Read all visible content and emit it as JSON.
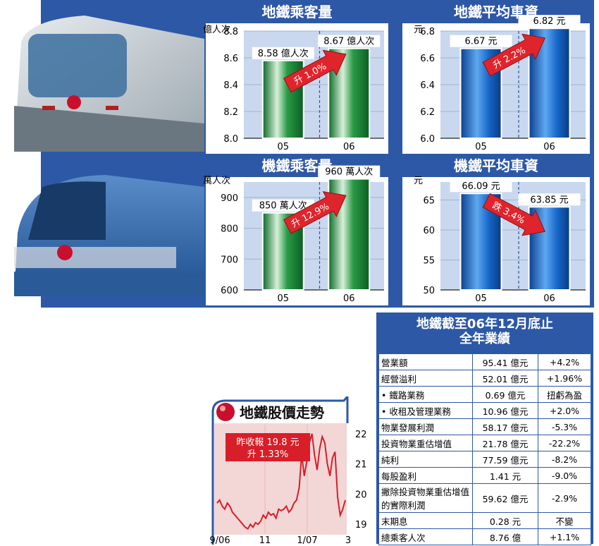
{
  "charts": [
    {
      "title": "地鐵乘客量",
      "unit": "億人次",
      "categories": [
        "05",
        "06"
      ],
      "ticks": [
        "8.0",
        "8.2",
        "8.4",
        "8.6",
        "8.8"
      ],
      "ylim": [
        8.0,
        8.8
      ],
      "values": [
        8.58,
        8.67
      ],
      "value_labels": [
        "8.58 億人次",
        "8.67 億人次"
      ],
      "change": "升 1.0%",
      "bar_color": "green"
    },
    {
      "title": "地鐵平均車資",
      "unit": "元",
      "categories": [
        "05",
        "06"
      ],
      "ticks": [
        "6.0",
        "6.2",
        "6.4",
        "6.6",
        "6.8"
      ],
      "ylim": [
        6.0,
        6.8
      ],
      "values": [
        6.67,
        6.82
      ],
      "value_labels": [
        "6.67 元",
        "6.82 元"
      ],
      "change": "升 2.2%",
      "bar_color": "blue"
    },
    {
      "title": "機鐵乘客量",
      "unit": "萬人次",
      "categories": [
        "05",
        "06"
      ],
      "ticks": [
        "600",
        "700",
        "800",
        "900"
      ],
      "ylim": [
        600,
        950
      ],
      "values": [
        850,
        960
      ],
      "value_labels": [
        "850 萬人次",
        "960 萬人次"
      ],
      "change": "升 12.9%",
      "bar_color": "green"
    },
    {
      "title": "機鐵平均車資",
      "unit": "元",
      "categories": [
        "05",
        "06"
      ],
      "ticks": [
        "50",
        "55",
        "60",
        "65"
      ],
      "ylim": [
        50,
        68
      ],
      "values": [
        66.09,
        63.85
      ],
      "value_labels": [
        "66.09 元",
        "63.85 元"
      ],
      "change": "跌 3.4%",
      "bar_color": "blue"
    }
  ],
  "chart_data": [
    {
      "type": "bar",
      "title": "地鐵乘客量",
      "ylabel": "億人次",
      "categories": [
        "05",
        "06"
      ],
      "values": [
        8.58,
        8.67
      ],
      "ylim": [
        8.0,
        8.8
      ]
    },
    {
      "type": "bar",
      "title": "地鐵平均車資",
      "ylabel": "元",
      "categories": [
        "05",
        "06"
      ],
      "values": [
        6.67,
        6.82
      ],
      "ylim": [
        6.0,
        6.8
      ]
    },
    {
      "type": "bar",
      "title": "機鐵乘客量",
      "ylabel": "萬人次",
      "categories": [
        "05",
        "06"
      ],
      "values": [
        850,
        960
      ],
      "ylim": [
        600,
        950
      ]
    },
    {
      "type": "bar",
      "title": "機鐵平均車資",
      "ylabel": "元",
      "categories": [
        "05",
        "06"
      ],
      "values": [
        66.09,
        63.85
      ],
      "ylim": [
        50,
        68
      ]
    },
    {
      "type": "line",
      "title": "地鐵股價走勢",
      "x_ticks": [
        "9/06",
        "11",
        "1/07",
        "3"
      ],
      "y_ticks": [
        "19",
        "20",
        "21",
        "22"
      ],
      "ylim": [
        18.7,
        22.3
      ],
      "values": [
        19.7,
        19.8,
        19.6,
        19.5,
        19.7,
        19.6,
        19.4,
        19.3,
        19.2,
        19.1,
        19.0,
        18.9,
        18.85,
        19.0,
        18.9,
        19.05,
        19.0,
        19.1,
        19.3,
        19.2,
        19.4,
        19.3,
        19.35,
        19.2,
        19.5,
        19.45,
        19.5,
        19.6,
        19.4,
        19.5,
        19.7,
        19.8,
        20.2,
        21.3,
        20.6,
        21.1,
        21.7,
        22.0,
        21.3,
        20.8,
        21.5,
        21.9,
        21.7,
        21.0,
        20.6,
        21.2,
        21.4,
        19.9,
        19.3,
        19.5,
        19.8
      ]
    }
  ],
  "stock": {
    "title": "地鐵股價走勢",
    "note_line1": "昨收報 19.8 元",
    "note_line2": "升 1.33%"
  },
  "results": {
    "title_line1": "地鐵截至06年12月底止",
    "title_line2": "全年業績",
    "rows": [
      {
        "label": "營業額",
        "value": "95.41 億元",
        "change": "+4.2%"
      },
      {
        "label": "經營溢利",
        "value": "52.01 億元",
        "change": "+1.96%"
      },
      {
        "label": "• 鐵路業務",
        "value": "0.69 億元",
        "change": "扭虧為盈"
      },
      {
        "label": "• 收租及管理業務",
        "value": "10.96 億元",
        "change": "+2.0%"
      },
      {
        "label": "物業發展利潤",
        "value": "58.17 億元",
        "change": "-5.3%"
      },
      {
        "label": "投資物業重估增值",
        "value": "21.78 億元",
        "change": "-22.2%"
      },
      {
        "label": "純利",
        "value": "77.59 億元",
        "change": "-8.2%"
      },
      {
        "label": "每股盈利",
        "value": "1.41 元",
        "change": "-9.0%"
      },
      {
        "label": "撇除投資物業重估增值的實際利潤",
        "value": "59.62 億元",
        "change": "-2.9%"
      },
      {
        "label": "末期息",
        "value": "0.28 元",
        "change": "不變"
      },
      {
        "label": "總乘客人次",
        "value": "8.76 億",
        "change": "+1.1%"
      }
    ]
  },
  "colors": {
    "panel_blue": "#2d58a6",
    "panel_light": "#c9d8ee",
    "bar_green": "#1d8a3a",
    "bar_blue": "#1565c8",
    "arrow_red": "#e0242c"
  }
}
